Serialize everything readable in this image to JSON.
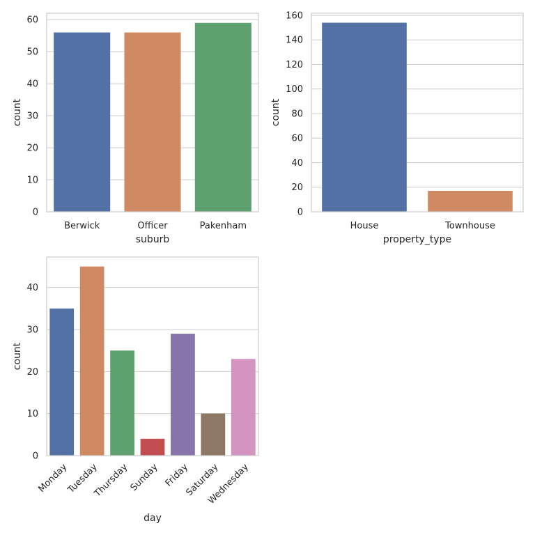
{
  "chart_data": [
    {
      "type": "bar",
      "categories": [
        "Berwick",
        "Officer",
        "Pakenham"
      ],
      "values": [
        56,
        56,
        59
      ],
      "colors": [
        "#5471a6",
        "#cf8a63",
        "#5fa06f"
      ],
      "xlabel": "suburb",
      "ylabel": "count",
      "ylim": [
        0,
        62
      ],
      "yticks": [
        0,
        10,
        20,
        30,
        40,
        50,
        60
      ],
      "grid": true
    },
    {
      "type": "bar",
      "categories": [
        "House",
        "Townhouse"
      ],
      "values": [
        154,
        17
      ],
      "colors": [
        "#5471a6",
        "#cf8a63"
      ],
      "xlabel": "property_type",
      "ylabel": "count",
      "ylim": [
        0,
        161.7
      ],
      "yticks": [
        0,
        20,
        40,
        60,
        80,
        100,
        120,
        140,
        160
      ],
      "grid": true
    },
    {
      "type": "bar",
      "categories": [
        "Monday",
        "Tuesday",
        "Thursday",
        "Sunday",
        "Friday",
        "Saturday",
        "Wednesday"
      ],
      "values": [
        35,
        45,
        25,
        4,
        29,
        10,
        23
      ],
      "colors": [
        "#5471a6",
        "#cf8a63",
        "#5fa06f",
        "#c24e52",
        "#8674aa",
        "#8d7866",
        "#d394c2"
      ],
      "xlabel": "day",
      "ylabel": "count",
      "ylim": [
        0,
        47.25
      ],
      "yticks": [
        0,
        10,
        20,
        30,
        40
      ],
      "xtick_rotation": 45,
      "grid": true
    }
  ]
}
